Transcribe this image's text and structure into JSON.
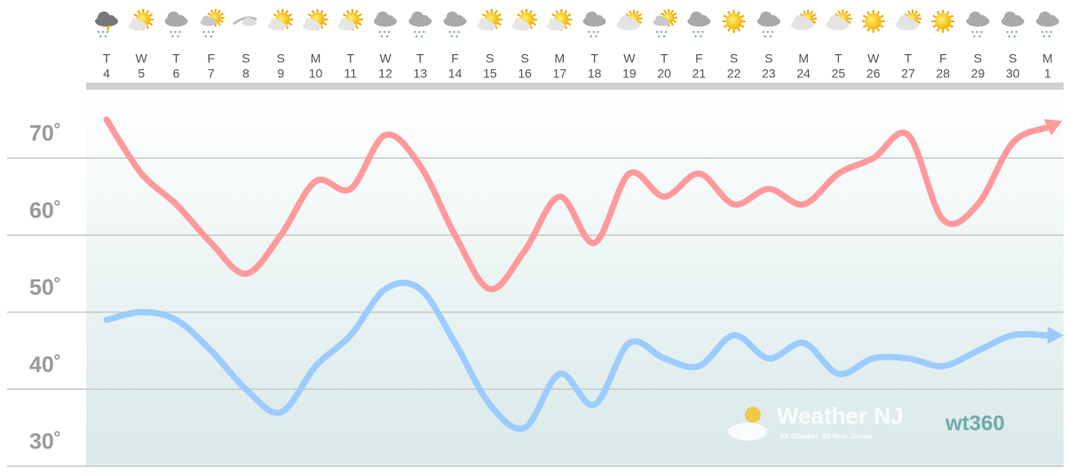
{
  "chart_data": {
    "type": "line",
    "weekdays": [
      "T",
      "W",
      "T",
      "F",
      "S",
      "S",
      "M",
      "T",
      "W",
      "T",
      "F",
      "S",
      "S",
      "M",
      "T",
      "W",
      "T",
      "F",
      "S",
      "S",
      "M",
      "T",
      "W",
      "T",
      "F",
      "S",
      "S",
      "M"
    ],
    "categories": [
      "4",
      "5",
      "6",
      "7",
      "8",
      "9",
      "10",
      "11",
      "12",
      "13",
      "14",
      "15",
      "16",
      "17",
      "18",
      "19",
      "20",
      "21",
      "22",
      "23",
      "24",
      "25",
      "26",
      "27",
      "28",
      "29",
      "30",
      "1"
    ],
    "series": [
      {
        "color": "#ff9a9c",
        "values": [
          75,
          68,
          64,
          59,
          55,
          60,
          67,
          66,
          73,
          69,
          60,
          53,
          58,
          65,
          59,
          68,
          65,
          68,
          64,
          66,
          64,
          68,
          70,
          73,
          62,
          64,
          72,
          74
        ]
      },
      {
        "color": "#9ccbff",
        "values": [
          49,
          50,
          49,
          45,
          40,
          37,
          43,
          47,
          53,
          53,
          46,
          38,
          35,
          42,
          38,
          46,
          44,
          43,
          47,
          44,
          46,
          42,
          44,
          44,
          43,
          45,
          47,
          47
        ]
      }
    ],
    "ylim": [
      30,
      79
    ],
    "yticks": [
      {
        "value": 30,
        "label": "30˚"
      },
      {
        "value": 40,
        "label": "40˚"
      },
      {
        "value": 50,
        "label": "50˚"
      },
      {
        "value": 60,
        "label": "60˚"
      },
      {
        "value": 70,
        "label": "70˚"
      }
    ],
    "grid": true,
    "watermark": {
      "brand": "Weather NJ",
      "tagline": "All Weather. All New Jersey.",
      "partner": "wt360"
    }
  }
}
